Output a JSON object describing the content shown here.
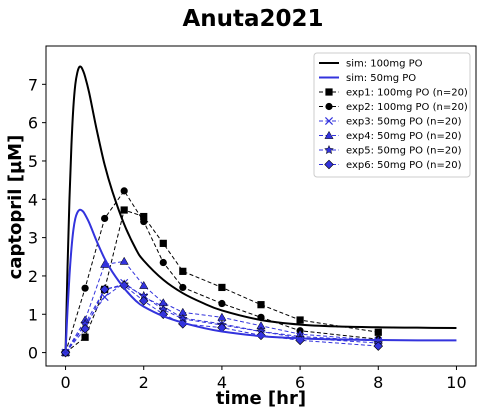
{
  "chart_data": {
    "type": "line",
    "title": "Anuta2021",
    "xlabel": "time [hr]",
    "ylabel": "captopril [µM]",
    "xlim": [
      -0.5,
      10.5
    ],
    "ylim": [
      -0.35,
      8.0
    ],
    "xticks": [
      0,
      2,
      4,
      6,
      8,
      10
    ],
    "yticks": [
      0,
      1,
      2,
      3,
      4,
      5,
      6,
      7
    ],
    "grid": false,
    "legend_position": "top-right",
    "sim_series": [
      {
        "name": "sim: 100mg PO",
        "color": "#000000",
        "x": [
          0,
          0.05,
          0.1,
          0.15,
          0.2,
          0.25,
          0.3,
          0.35,
          0.4,
          0.45,
          0.5,
          0.6,
          0.7,
          0.8,
          1.0,
          1.2,
          1.5,
          1.8,
          2.0,
          2.5,
          3.0,
          3.5,
          4.0,
          5.0,
          6.0,
          7.0,
          8.0,
          9.0,
          10.0
        ],
        "y": [
          0,
          2.2,
          4.0,
          5.4,
          6.4,
          7.0,
          7.3,
          7.45,
          7.45,
          7.35,
          7.2,
          6.8,
          6.3,
          5.8,
          4.9,
          4.2,
          3.35,
          2.7,
          2.4,
          1.9,
          1.55,
          1.3,
          1.1,
          0.85,
          0.73,
          0.68,
          0.66,
          0.65,
          0.64
        ]
      },
      {
        "name": "sim: 50mg PO",
        "color": "#3333dd",
        "x": [
          0,
          0.05,
          0.1,
          0.15,
          0.2,
          0.25,
          0.3,
          0.35,
          0.4,
          0.45,
          0.5,
          0.6,
          0.7,
          0.8,
          1.0,
          1.2,
          1.5,
          1.8,
          2.0,
          2.5,
          3.0,
          3.5,
          4.0,
          5.0,
          6.0,
          7.0,
          8.0,
          9.0,
          10.0
        ],
        "y": [
          0,
          1.1,
          2.0,
          2.7,
          3.2,
          3.5,
          3.65,
          3.72,
          3.72,
          3.68,
          3.6,
          3.4,
          3.15,
          2.9,
          2.45,
          2.1,
          1.68,
          1.35,
          1.2,
          0.95,
          0.78,
          0.65,
          0.55,
          0.43,
          0.37,
          0.34,
          0.33,
          0.32,
          0.32
        ]
      }
    ],
    "exp_series": [
      {
        "name": "exp1: 100mg PO (n=20)",
        "color": "#000000",
        "marker": "square",
        "x": [
          0,
          0.5,
          1,
          1.5,
          2,
          2.5,
          3,
          4,
          5,
          6,
          8
        ],
        "y": [
          0,
          0.4,
          1.65,
          3.72,
          3.55,
          2.85,
          2.12,
          1.7,
          1.25,
          0.85,
          0.53
        ]
      },
      {
        "name": "exp2: 100mg PO (n=20)",
        "color": "#000000",
        "marker": "circle",
        "x": [
          0,
          0.5,
          1,
          1.5,
          2,
          2.5,
          3,
          4,
          5,
          6,
          8
        ],
        "y": [
          0,
          1.68,
          3.5,
          4.22,
          3.42,
          2.35,
          1.7,
          1.28,
          0.92,
          0.57,
          0.35
        ]
      },
      {
        "name": "exp3: 50mg PO (n=20)",
        "color": "#3333dd",
        "marker": "x",
        "x": [
          0,
          0.5,
          1,
          1.5,
          2,
          2.5,
          3,
          4,
          5,
          6,
          8
        ],
        "y": [
          0,
          0.72,
          1.45,
          1.82,
          1.45,
          1.2,
          0.9,
          0.75,
          0.55,
          0.42,
          0.3
        ]
      },
      {
        "name": "exp4: 50mg PO (n=20)",
        "color": "#3333dd",
        "marker": "triangle",
        "x": [
          0,
          0.5,
          1,
          1.5,
          2,
          2.5,
          3,
          4,
          5,
          6,
          8
        ],
        "y": [
          0,
          0.85,
          2.3,
          2.38,
          1.75,
          1.3,
          1.05,
          0.92,
          0.7,
          0.48,
          0.32
        ]
      },
      {
        "name": "exp5: 50mg PO (n=20)",
        "color": "#3333dd",
        "marker": "star",
        "x": [
          0,
          0.5,
          1,
          1.5,
          2,
          2.5,
          3,
          4,
          5,
          6,
          8
        ],
        "y": [
          0,
          0.75,
          1.65,
          1.78,
          1.48,
          1.12,
          0.88,
          0.72,
          0.55,
          0.38,
          0.25
        ]
      },
      {
        "name": "exp6: 50mg PO (n=20)",
        "color": "#3333dd",
        "marker": "diamond",
        "x": [
          0,
          0.5,
          1,
          1.5,
          2,
          2.5,
          3,
          4,
          5,
          6,
          8
        ],
        "y": [
          0,
          0.62,
          1.65,
          1.75,
          1.35,
          1.0,
          0.75,
          0.65,
          0.45,
          0.32,
          0.17
        ]
      }
    ]
  }
}
